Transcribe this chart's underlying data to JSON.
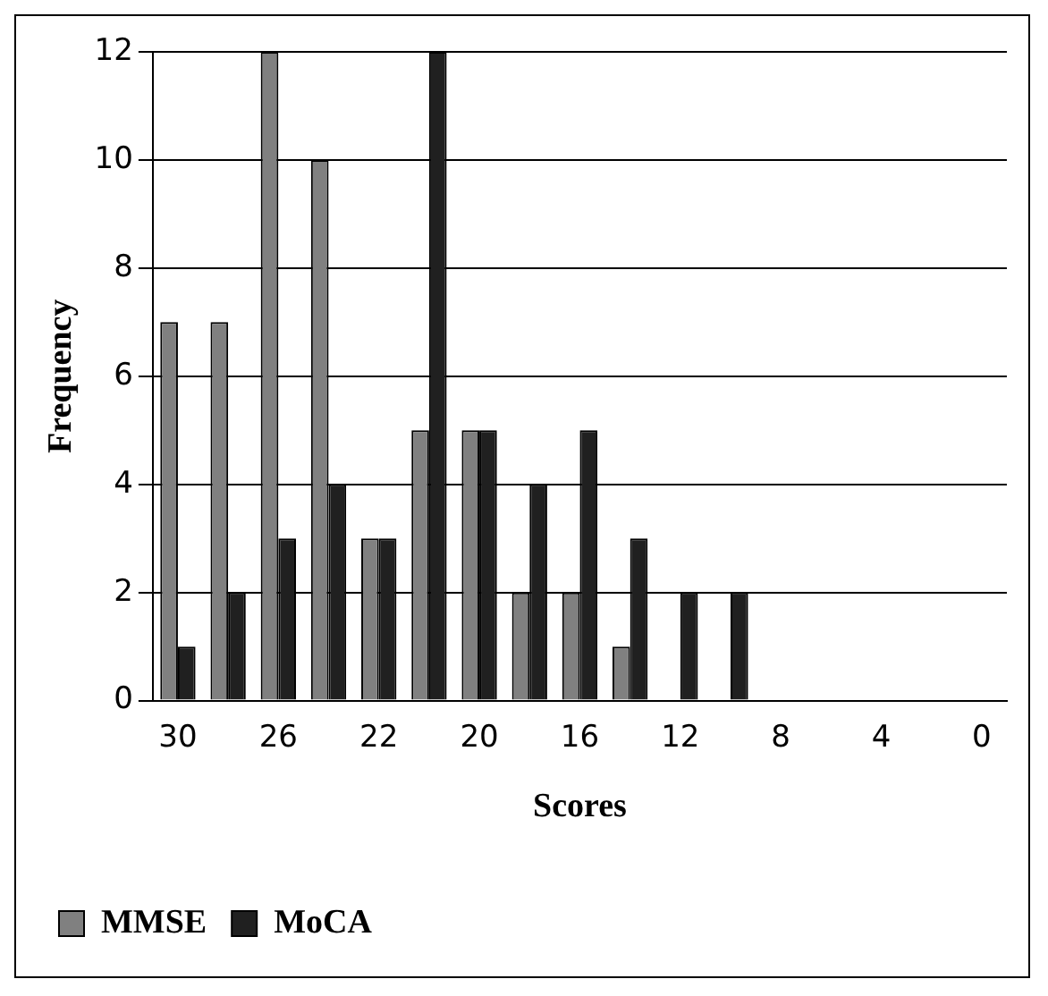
{
  "chart_data": {
    "type": "bar",
    "xlabel": "Scores",
    "ylabel": "Frequency",
    "categories": [
      "30",
      null,
      "26",
      null,
      "22",
      null,
      "20",
      null,
      "16",
      null,
      "12",
      null,
      "8",
      null,
      "4",
      null,
      "0"
    ],
    "series": [
      {
        "name": "MMSE",
        "color": "#808080",
        "values": [
          7,
          7,
          12,
          10,
          3,
          5,
          5,
          2,
          2,
          1,
          0,
          0,
          0,
          0,
          0,
          0,
          0
        ]
      },
      {
        "name": "MoCA",
        "color": "#202020",
        "values": [
          1,
          2,
          3,
          4,
          3,
          12,
          5,
          4,
          5,
          3,
          2,
          2,
          0,
          0,
          0,
          0,
          0
        ]
      }
    ],
    "ylim": [
      0,
      12
    ],
    "yticks": [
      0,
      2,
      4,
      6,
      8,
      10,
      12
    ],
    "grid": "y",
    "legend": "bottom left"
  }
}
